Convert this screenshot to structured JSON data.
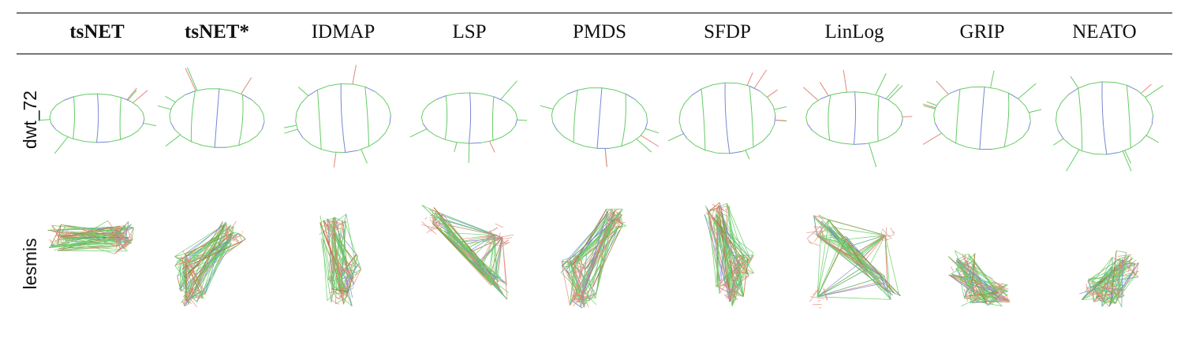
{
  "columns": [
    {
      "label": "tsNET",
      "bold": true
    },
    {
      "label": "tsNET*",
      "bold": true
    },
    {
      "label": "IDMAP",
      "bold": false
    },
    {
      "label": "LSP",
      "bold": false
    },
    {
      "label": "PMDS",
      "bold": false
    },
    {
      "label": "SFDP",
      "bold": false
    },
    {
      "label": "LinLog",
      "bold": false
    },
    {
      "label": "GRIP",
      "bold": false
    },
    {
      "label": "NEATO",
      "bold": false
    }
  ],
  "rows": [
    {
      "label": "dwt_72"
    },
    {
      "label": "lesmis"
    }
  ],
  "colors": {
    "edge_green": "#66cc66",
    "edge_red": "#e08a7a",
    "edge_blue": "#7a86d6",
    "edge_dark": "#a36a1e"
  }
}
